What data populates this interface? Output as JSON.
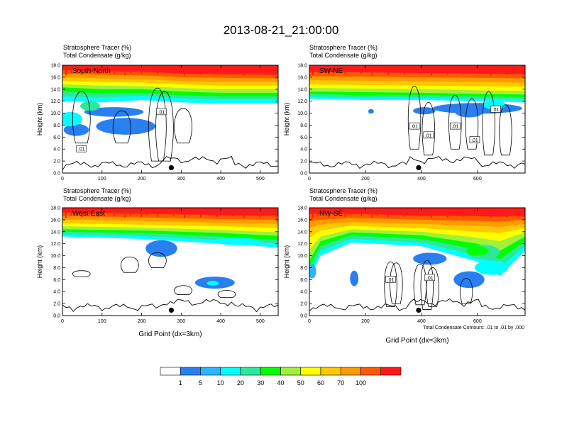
{
  "title": "2013-08-21_21:00:00",
  "colors": {
    "levels": [
      "#ffffff",
      "#2a7ff0",
      "#2bb4ff",
      "#00ffff",
      "#2ee89a",
      "#00ff00",
      "#a0f03c",
      "#ffff00",
      "#ffc800",
      "#ff9a00",
      "#ff5a00",
      "#ff1a1a"
    ],
    "terrain": "#000000",
    "marker": "#000000"
  },
  "chart_data": [
    {
      "type": "heatmap",
      "panel_label": "South-North",
      "var1": "Stratosphere Tracer   (%)",
      "var2": "Total Condensate   (g/kg)",
      "ylabel": "Height (km)",
      "xlabel": "",
      "xlim": [
        0,
        545
      ],
      "ylim": [
        0,
        18
      ],
      "xticks": [
        0,
        100,
        200,
        300,
        400,
        500
      ],
      "yticks": [
        "0.0",
        "2.0",
        "4.0",
        "6.0",
        "8.0",
        "10.0",
        "12.0",
        "14.0",
        "16.0",
        "18.0"
      ],
      "marker_x": 275,
      "contour_labels": [
        {
          "text": ".01",
          "x": 48,
          "y": 4.0
        },
        {
          "text": ".01",
          "x": 250,
          "y": 10.2
        }
      ],
      "tracer_profile": [
        {
          "x": 0,
          "z": [
            12.0,
            12.8,
            13.6,
            14.3,
            14.8,
            15.4,
            16.0,
            16.6,
            17.2
          ]
        },
        {
          "x": 100,
          "z": [
            11.8,
            12.6,
            13.3,
            14.0,
            14.6,
            15.2,
            15.8,
            16.4,
            17.0
          ]
        },
        {
          "x": 200,
          "z": [
            12.2,
            12.9,
            13.4,
            14.0,
            14.5,
            15.1,
            15.7,
            16.3,
            16.9
          ]
        },
        {
          "x": 300,
          "z": [
            11.8,
            12.5,
            13.0,
            13.6,
            14.2,
            14.8,
            15.4,
            16.0,
            16.6
          ]
        },
        {
          "x": 400,
          "z": [
            11.6,
            12.3,
            12.8,
            13.4,
            14.0,
            14.6,
            15.2,
            15.9,
            16.5
          ]
        },
        {
          "x": 545,
          "z": [
            11.6,
            12.3,
            12.8,
            13.4,
            14.0,
            14.6,
            15.2,
            15.8,
            16.4
          ]
        }
      ]
    },
    {
      "type": "heatmap",
      "panel_label": "SW-NE",
      "var1": "Stratosphere Tracer   (%)",
      "var2": "Total Condensate   (g/kg)",
      "ylabel": "Height (km)",
      "xlabel": "",
      "xlim": [
        0,
        770
      ],
      "ylim": [
        0,
        18
      ],
      "xticks": [
        0,
        200,
        400,
        600
      ],
      "yticks": [
        "0.0",
        "2.0",
        "4.0",
        "6.0",
        "8.0",
        "10.0",
        "12.0",
        "14.0",
        "16.0",
        "18.0"
      ],
      "marker_x": 390,
      "contour_labels": [
        {
          "text": ".01",
          "x": 375,
          "y": 7.8
        },
        {
          "text": ".01",
          "x": 425,
          "y": 6.3
        },
        {
          "text": ".01",
          "x": 520,
          "y": 7.8
        },
        {
          "text": ".01",
          "x": 590,
          "y": 5.5
        },
        {
          "text": ".01",
          "x": 665,
          "y": 10.6
        }
      ],
      "tracer_profile": [
        {
          "x": 0,
          "z": [
            12.4,
            12.8,
            13.2,
            13.6,
            14.2,
            14.8,
            15.5,
            16.2,
            16.9
          ]
        },
        {
          "x": 200,
          "z": [
            12.2,
            12.6,
            13.0,
            13.5,
            14.1,
            14.7,
            15.4,
            16.1,
            16.8
          ]
        },
        {
          "x": 400,
          "z": [
            12.2,
            12.6,
            13.0,
            13.4,
            14.0,
            14.6,
            15.3,
            16.0,
            16.7
          ]
        },
        {
          "x": 600,
          "z": [
            12.0,
            12.4,
            12.8,
            13.2,
            13.8,
            14.5,
            15.2,
            15.9,
            16.6
          ]
        },
        {
          "x": 770,
          "z": [
            11.8,
            12.3,
            12.7,
            13.1,
            13.7,
            14.4,
            15.1,
            15.8,
            16.5
          ]
        }
      ]
    },
    {
      "type": "heatmap",
      "panel_label": "West-East",
      "var1": "Stratosphere Tracer   (%)",
      "var2": "Total Condensate   (g/kg)",
      "ylabel": "Height (km)",
      "xlabel": "Grid Point (dx=3km)",
      "xlim": [
        0,
        545
      ],
      "ylim": [
        0,
        18
      ],
      "xticks": [
        0,
        100,
        200,
        300,
        400,
        500
      ],
      "yticks": [
        "0.0",
        "2.0",
        "4.0",
        "6.0",
        "8.0",
        "10.0",
        "12.0",
        "14.0",
        "16.0",
        "18.0"
      ],
      "marker_x": 275,
      "contour_labels": [],
      "tracer_profile": [
        {
          "x": 0,
          "z": [
            13.2,
            13.6,
            14.0,
            14.4,
            14.9,
            15.4,
            16.0,
            16.6,
            17.2
          ]
        },
        {
          "x": 200,
          "z": [
            12.8,
            13.3,
            13.8,
            14.2,
            14.7,
            15.2,
            15.8,
            16.4,
            17.0
          ]
        },
        {
          "x": 400,
          "z": [
            12.0,
            12.6,
            13.2,
            13.8,
            14.3,
            14.9,
            15.5,
            16.1,
            16.8
          ]
        },
        {
          "x": 545,
          "z": [
            11.4,
            12.0,
            12.6,
            13.3,
            13.9,
            14.6,
            15.3,
            16.0,
            16.7
          ]
        }
      ]
    },
    {
      "type": "heatmap",
      "panel_label": "NW-SE",
      "var1": "Stratosphere Tracer   (%)",
      "var2": "Total Condensate   (g/kg)",
      "ylabel": "Height (km)",
      "xlabel": "Grid Point (dx=3km)",
      "xlim": [
        0,
        770
      ],
      "ylim": [
        0,
        18
      ],
      "xticks": [
        0,
        200,
        400,
        600
      ],
      "yticks": [
        "0.0",
        "2.0",
        "4.0",
        "6.0",
        "8.0",
        "10.0",
        "12.0",
        "14.0",
        "16.0",
        "18.0"
      ],
      "marker_x": 390,
      "contour_labels": [
        {
          "text": ".01",
          "x": 290,
          "y": 6.0
        },
        {
          "text": ".01",
          "x": 430,
          "y": 6.3
        }
      ],
      "footnote": "Total Condensate Contours: .01 to .01 by .000",
      "tracer_profile": [
        {
          "x": 0,
          "z": [
            6.2,
            7.2,
            8.2,
            9.2,
            11.0,
            13.0,
            14.6,
            15.8,
            17.0
          ]
        },
        {
          "x": 40,
          "z": [
            10.0,
            10.8,
            11.6,
            12.4,
            13.2,
            14.2,
            15.2,
            16.0,
            17.0
          ]
        },
        {
          "x": 150,
          "z": [
            12.2,
            12.8,
            13.4,
            13.9,
            14.4,
            15.0,
            15.6,
            16.3,
            17.0
          ]
        },
        {
          "x": 400,
          "z": [
            11.6,
            12.2,
            12.8,
            13.4,
            14.0,
            14.6,
            15.3,
            16.0,
            16.7
          ]
        },
        {
          "x": 600,
          "z": [
            9.0,
            10.0,
            11.0,
            12.0,
            13.0,
            14.0,
            15.0,
            15.8,
            16.6
          ]
        },
        {
          "x": 680,
          "z": [
            6.6,
            8.0,
            9.4,
            10.8,
            12.4,
            13.8,
            14.8,
            15.7,
            16.5
          ]
        },
        {
          "x": 770,
          "z": [
            10.8,
            11.6,
            12.4,
            13.2,
            13.9,
            14.6,
            15.3,
            16.0,
            16.7
          ]
        }
      ]
    }
  ],
  "colorbar": {
    "ticks": [
      "1",
      "5",
      "10",
      "20",
      "30",
      "40",
      "50",
      "60",
      "70",
      "100"
    ]
  }
}
